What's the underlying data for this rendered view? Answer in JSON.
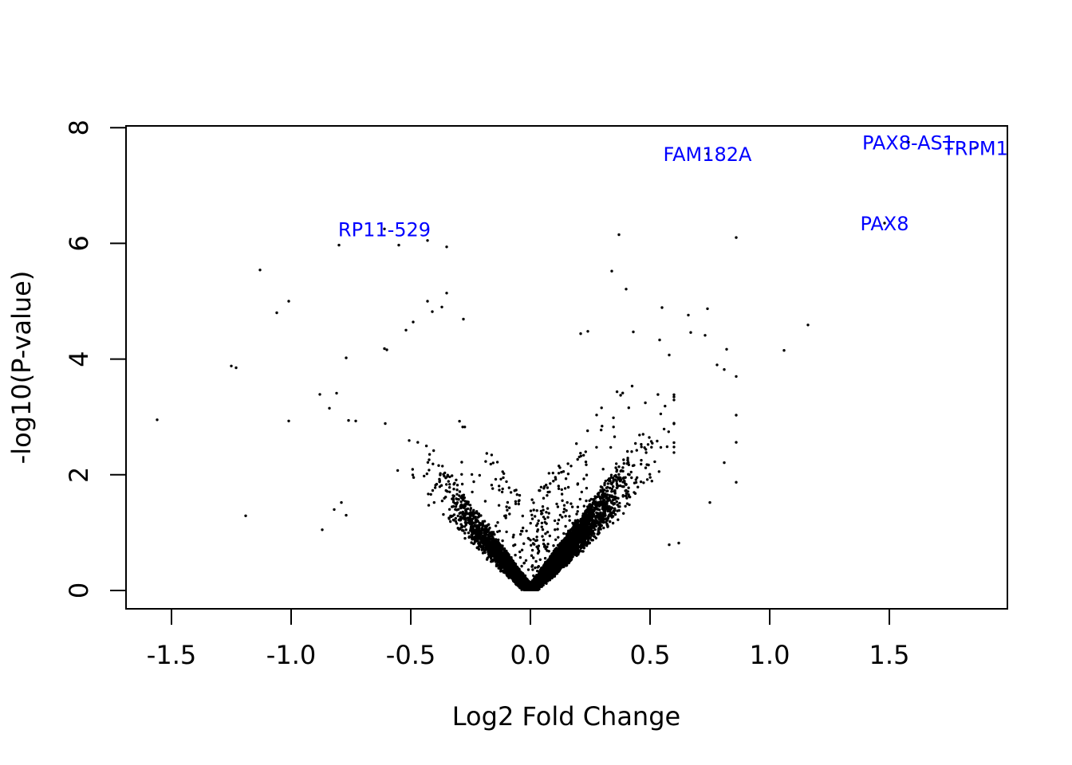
{
  "chart_data": {
    "type": "scatter",
    "title": "",
    "xlabel": "Log2 Fold Change",
    "ylabel": "-log10(P-value)",
    "xlim": [
      -1.7,
      2.0
    ],
    "ylim": [
      -0.3,
      8.05
    ],
    "x_ticks": [
      -1.5,
      -1.0,
      -0.5,
      0.0,
      0.5,
      1.0,
      1.5
    ],
    "x_tick_labels": [
      "-1.5",
      "-1.0",
      "-0.5",
      "0.0",
      "0.5",
      "1.0",
      "1.5"
    ],
    "y_ticks": [
      0,
      2,
      4,
      6,
      8
    ],
    "y_tick_labels": [
      "0",
      "2",
      "4",
      "6",
      "8"
    ],
    "grid": false,
    "point_color": "#000000",
    "label_color": "#0000ff",
    "labeled_genes": [
      {
        "name": "TRPM1",
        "x": 1.86,
        "y": 7.65
      },
      {
        "name": "PAX8-AS1",
        "x": 1.58,
        "y": 7.75
      },
      {
        "name": "FAM182A",
        "x": 0.74,
        "y": 7.55
      },
      {
        "name": "RP11-529",
        "x": -0.61,
        "y": 6.25
      },
      {
        "name": "PAX8",
        "x": 1.48,
        "y": 6.35
      }
    ],
    "points": [
      {
        "x": -1.56,
        "y": 2.95
      },
      {
        "x": -1.25,
        "y": 3.88
      },
      {
        "x": -1.23,
        "y": 3.85
      },
      {
        "x": -1.19,
        "y": 1.29
      },
      {
        "x": -1.13,
        "y": 5.54
      },
      {
        "x": -1.06,
        "y": 4.8
      },
      {
        "x": -1.01,
        "y": 5.0
      },
      {
        "x": -1.01,
        "y": 2.93
      },
      {
        "x": -0.88,
        "y": 3.39
      },
      {
        "x": -0.87,
        "y": 1.05
      },
      {
        "x": -0.84,
        "y": 3.15
      },
      {
        "x": -0.82,
        "y": 1.4
      },
      {
        "x": -0.81,
        "y": 3.41
      },
      {
        "x": -0.79,
        "y": 1.52
      },
      {
        "x": -0.77,
        "y": 4.02
      },
      {
        "x": -0.77,
        "y": 1.3
      },
      {
        "x": -0.76,
        "y": 2.94
      },
      {
        "x": -0.73,
        "y": 2.93
      },
      {
        "x": -0.8,
        "y": 5.97
      },
      {
        "x": -0.55,
        "y": 5.97
      },
      {
        "x": -0.43,
        "y": 6.05
      },
      {
        "x": -0.35,
        "y": 5.94
      },
      {
        "x": -0.35,
        "y": 5.14
      },
      {
        "x": -0.61,
        "y": 4.18
      },
      {
        "x": -0.6,
        "y": 4.16
      },
      {
        "x": -0.43,
        "y": 5.0
      },
      {
        "x": -0.41,
        "y": 4.82
      },
      {
        "x": -0.37,
        "y": 4.9
      },
      {
        "x": -0.28,
        "y": 4.69
      },
      {
        "x": -0.52,
        "y": 4.5
      },
      {
        "x": -0.49,
        "y": 4.64
      },
      {
        "x": 0.37,
        "y": 6.15
      },
      {
        "x": 0.86,
        "y": 6.1
      },
      {
        "x": 0.34,
        "y": 5.52
      },
      {
        "x": 0.4,
        "y": 5.21
      },
      {
        "x": 0.55,
        "y": 4.89
      },
      {
        "x": 0.74,
        "y": 4.87
      },
      {
        "x": 0.66,
        "y": 4.76
      },
      {
        "x": 1.16,
        "y": 4.59
      },
      {
        "x": 1.06,
        "y": 4.15
      },
      {
        "x": 0.67,
        "y": 4.46
      },
      {
        "x": 0.73,
        "y": 4.41
      },
      {
        "x": 0.82,
        "y": 4.17
      },
      {
        "x": 0.86,
        "y": 3.7
      },
      {
        "x": 0.86,
        "y": 3.03
      },
      {
        "x": 0.86,
        "y": 2.56
      },
      {
        "x": 0.86,
        "y": 1.87
      },
      {
        "x": 0.81,
        "y": 2.21
      },
      {
        "x": 0.78,
        "y": 3.9
      },
      {
        "x": 0.81,
        "y": 3.82
      },
      {
        "x": 0.75,
        "y": 1.52
      },
      {
        "x": 0.62,
        "y": 0.82
      },
      {
        "x": 0.58,
        "y": 0.79
      },
      {
        "x": 0.43,
        "y": 4.47
      },
      {
        "x": 0.21,
        "y": 4.44
      },
      {
        "x": 0.24,
        "y": 4.48
      },
      {
        "x": 0.54,
        "y": 4.33
      },
      {
        "x": 0.58,
        "y": 4.07
      }
    ],
    "bulk_cloud_point_count": 6000
  }
}
